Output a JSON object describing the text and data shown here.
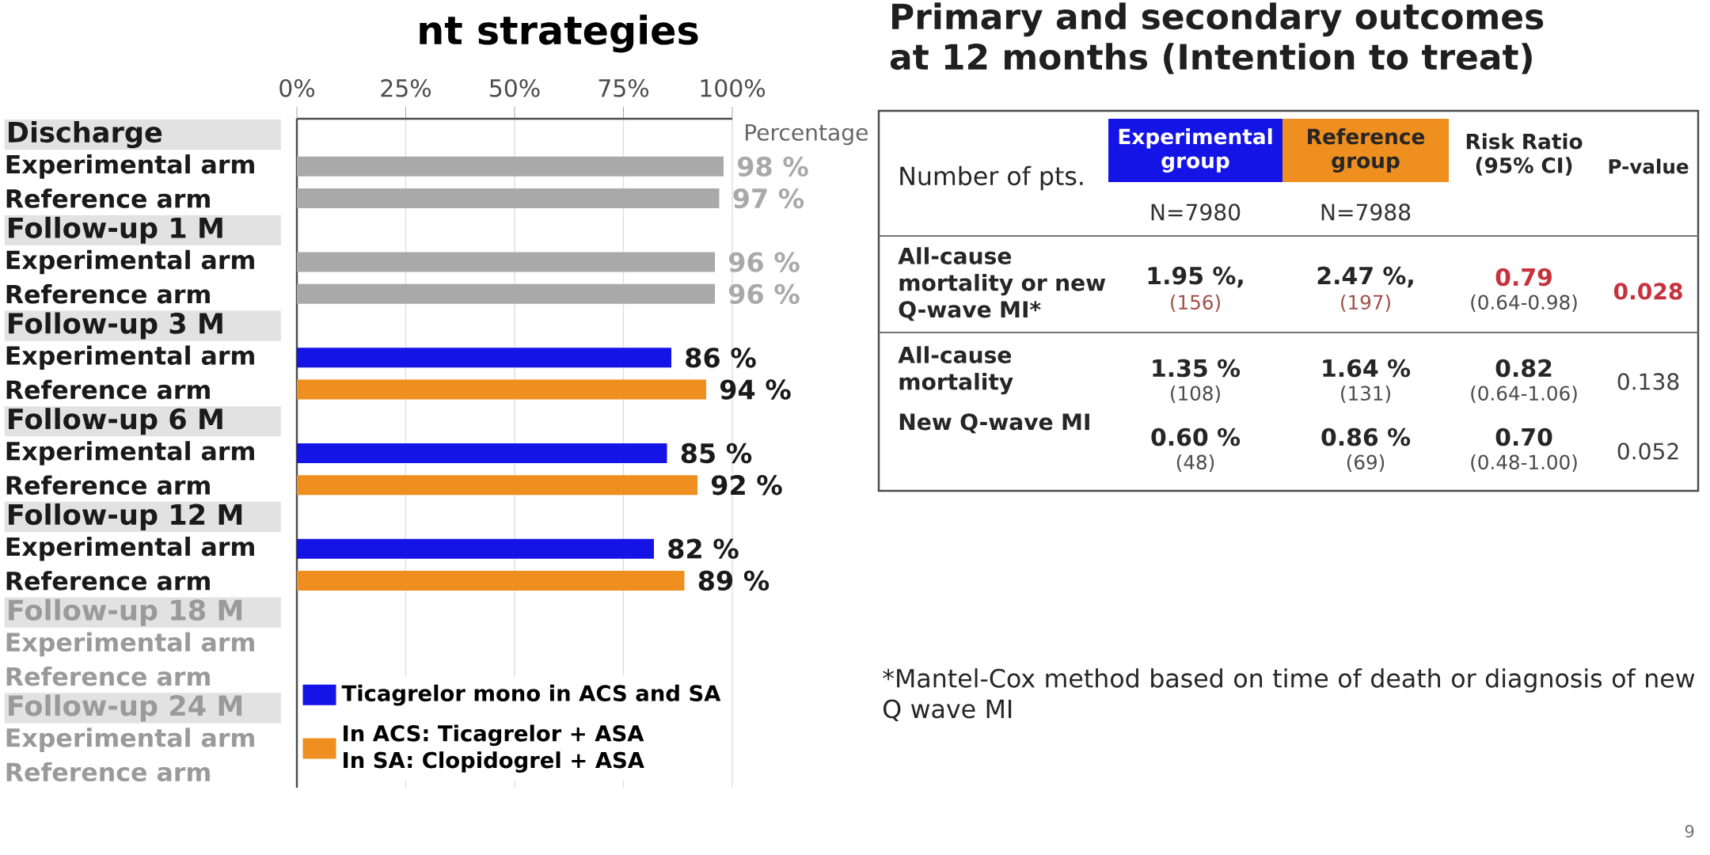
{
  "chart_data": [
    {
      "type": "bar",
      "orientation": "horizontal",
      "title": "nt strategies",
      "categories": [
        "Discharge",
        "Experimental arm",
        "Reference arm",
        "Follow-up 1 M",
        "Experimental arm",
        "Reference arm",
        "Follow-up 3 M",
        "Experimental arm",
        "Reference arm",
        "Follow-up 6 M",
        "Experimental arm",
        "Reference arm",
        "Follow-up 12 M",
        "Experimental arm",
        "Reference arm",
        "Follow-up 18 M",
        "Experimental arm",
        "Reference arm",
        "Follow-up 24 M",
        "Experimental arm",
        "Reference arm"
      ],
      "series": [
        {
          "color": "#a9a9a9",
          "values": [
            null,
            98,
            97,
            null,
            96,
            96,
            null,
            null,
            null,
            null,
            null,
            null,
            null,
            null,
            null,
            null,
            null,
            null,
            null,
            null,
            null
          ],
          "value_labels": [
            null,
            "98 %",
            "97 %",
            null,
            "96 %",
            "96 %",
            null,
            null,
            null,
            null,
            null,
            null,
            null,
            null,
            null,
            null,
            null,
            null,
            null,
            null,
            null
          ]
        },
        {
          "name": "Ticagrelor mono in ACS and SA",
          "color": "#1414e6",
          "values": [
            null,
            null,
            null,
            null,
            null,
            null,
            null,
            86,
            null,
            null,
            85,
            null,
            null,
            82,
            null,
            null,
            null,
            null,
            null,
            null,
            null
          ],
          "value_labels": [
            null,
            null,
            null,
            null,
            null,
            null,
            null,
            "86 %",
            null,
            null,
            "85 %",
            null,
            null,
            "82 %",
            null,
            null,
            null,
            null,
            null,
            null,
            null
          ]
        },
        {
          "name": "In ACS: Ticagrelor + ASA\nIn SA: Clopidogrel + ASA",
          "color": "#ee8f1f",
          "values": [
            null,
            null,
            null,
            null,
            null,
            null,
            null,
            null,
            94,
            null,
            null,
            92,
            null,
            null,
            89,
            null,
            null,
            null,
            null,
            null,
            null
          ],
          "value_labels": [
            null,
            null,
            null,
            null,
            null,
            null,
            null,
            null,
            "94 %",
            null,
            null,
            "92 %",
            null,
            null,
            "89 %",
            null,
            null,
            null,
            null,
            null,
            null
          ]
        }
      ],
      "xlim": [
        0,
        100
      ],
      "xticks": [
        {
          "value": 0,
          "label": "0%"
        },
        {
          "value": 25,
          "label": "25%"
        },
        {
          "value": 50,
          "label": "50%"
        },
        {
          "value": 75,
          "label": "75%"
        },
        {
          "value": 100,
          "label": "100%"
        }
      ],
      "grid": "x",
      "legend": "bottom",
      "annotations": [
        "Percentage"
      ]
    },
    {
      "type": "other",
      "title": "Primary and secondary outcomes\nat 12 months (Intention to treat)",
      "annotations": [
        "Experimental group",
        "Reference group",
        "Risk Ratio (95% CI)",
        "P-value",
        "Number of pts.",
        "N=7980",
        "N=7988",
        "All-cause mortality or new Q-wave MI*",
        "1.95 %,",
        "(156)",
        "2.47 %,",
        "(197)",
        "0.79",
        "(0.64-0.98)",
        "0.028",
        "All-cause mortality",
        "1.35 %",
        "(108)",
        "1.64 %",
        "(131)",
        "0.82",
        "(0.64-1.06)",
        "0.138",
        "New Q-wave MI",
        "0.60 %",
        "(48)",
        "0.86 %",
        "(69)",
        "0.70",
        "(0.48-1.00)",
        "0.052",
        "*Mantel-Cox method based on time of death or diagnosis of new Q wave MI",
        "9"
      ]
    }
  ]
}
